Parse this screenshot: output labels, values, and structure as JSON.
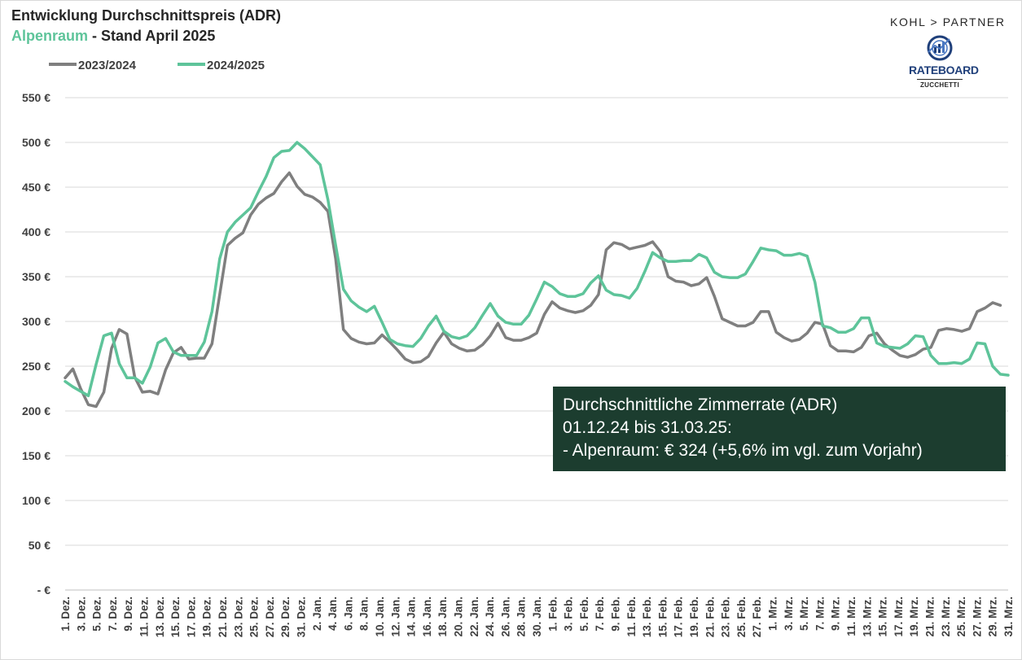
{
  "header": {
    "title": "Entwicklung Durchschnittspreis (ADR)",
    "subtitle_region": "Alpenraum",
    "subtitle_rest": " - Stand April 2025"
  },
  "logos": {
    "kohl_partner": "KOHL > PARTNER",
    "rateboard": "RATEBOARD",
    "rateboard_sub": "ZUCCHETTI"
  },
  "annotation": {
    "line1": "Durchschnittliche Zimmerrate (ADR)",
    "line2": "01.12.24 bis 31.03.25:",
    "line3": "- Alpenraum:  € 324 (+5,6% im vgl. zum Vorjahr)"
  },
  "colors": {
    "series_2023": "#7f7f7f",
    "series_2024": "#5ec49a",
    "annotation_bg": "#1c3d2f",
    "grid": "#d9d9d9"
  },
  "chart_data": {
    "type": "line",
    "title": "Entwicklung Durchschnittspreis (ADR)",
    "subtitle": "Alpenraum - Stand April 2025",
    "xlabel": "",
    "ylabel": "",
    "ylim": [
      0,
      550
    ],
    "y_ticks": [
      {
        "value": 0,
        "label": "- €"
      },
      {
        "value": 50,
        "label": "50 €"
      },
      {
        "value": 100,
        "label": "100 €"
      },
      {
        "value": 150,
        "label": "150 €"
      },
      {
        "value": 200,
        "label": "200 €"
      },
      {
        "value": 250,
        "label": "250 €"
      },
      {
        "value": 300,
        "label": "300 €"
      },
      {
        "value": 350,
        "label": "350 €"
      },
      {
        "value": 400,
        "label": "400 €"
      },
      {
        "value": 450,
        "label": "450 €"
      },
      {
        "value": 500,
        "label": "500 €"
      },
      {
        "value": 550,
        "label": "550 €"
      }
    ],
    "grid": true,
    "legend": "top-left",
    "x_tick_labels": [
      "1. Dez.",
      "3. Dez.",
      "5. Dez.",
      "7. Dez.",
      "9. Dez.",
      "11. Dez.",
      "13. Dez.",
      "15. Dez.",
      "17. Dez.",
      "19. Dez.",
      "21. Dez.",
      "23. Dez.",
      "25. Dez.",
      "27. Dez.",
      "29. Dez.",
      "31. Dez.",
      "2. Jan.",
      "4. Jan.",
      "6. Jan.",
      "8. Jan.",
      "10. Jan.",
      "12. Jan.",
      "14. Jan.",
      "16. Jan.",
      "18. Jan.",
      "20. Jan.",
      "22. Jan.",
      "24. Jan.",
      "26. Jan.",
      "28. Jan.",
      "30. Jan.",
      "1. Feb.",
      "3. Feb.",
      "5. Feb.",
      "7. Feb.",
      "9. Feb.",
      "11. Feb.",
      "13. Feb.",
      "15. Feb.",
      "17. Feb.",
      "19. Feb.",
      "21. Feb.",
      "23. Feb.",
      "25. Feb.",
      "27. Feb.",
      "1. Mrz.",
      "3. Mrz.",
      "5. Mrz.",
      "7. Mrz.",
      "9. Mrz.",
      "11. Mrz.",
      "13. Mrz.",
      "15. Mrz.",
      "17. Mrz.",
      "19. Mrz.",
      "21. Mrz.",
      "23. Mrz.",
      "25. Mrz.",
      "27. Mrz.",
      "29. Mrz.",
      "31. Mrz."
    ],
    "series": [
      {
        "name": "2023/2024",
        "values": [
          237,
          247,
          225,
          207,
          205,
          221,
          270,
          291,
          286,
          238,
          221,
          222,
          219,
          246,
          265,
          271,
          258,
          259,
          259,
          275,
          330,
          385,
          393,
          399,
          419,
          431,
          438,
          443,
          456,
          466,
          451,
          442,
          439,
          433,
          423,
          370,
          291,
          281,
          277,
          275,
          276,
          285,
          277,
          268,
          258,
          254,
          255,
          261,
          276,
          288,
          275,
          270,
          267,
          268,
          274,
          284,
          298,
          282,
          279,
          279,
          282,
          287,
          308,
          322,
          315,
          312,
          310,
          312,
          318,
          330,
          380,
          388,
          386,
          381,
          383,
          385,
          389,
          378,
          350,
          345,
          344,
          340,
          342,
          349,
          328,
          303,
          299,
          295,
          295,
          299,
          311,
          311,
          288,
          282,
          278,
          280,
          287,
          299,
          297,
          273,
          267,
          267,
          266,
          271,
          284,
          287,
          275,
          268,
          262,
          260,
          263,
          269,
          271,
          290,
          292,
          291,
          289,
          292,
          311,
          315,
          321,
          318
        ]
      },
      {
        "name": "2024/2025",
        "values": [
          233,
          227,
          222,
          217,
          252,
          284,
          287,
          253,
          237,
          237,
          231,
          249,
          276,
          281,
          266,
          262,
          262,
          262,
          277,
          311,
          370,
          400,
          411,
          419,
          427,
          445,
          462,
          483,
          490,
          491,
          500,
          493,
          484,
          475,
          436,
          385,
          336,
          323,
          316,
          311,
          317,
          299,
          280,
          275,
          273,
          272,
          281,
          295,
          306,
          289,
          283,
          281,
          284,
          293,
          307,
          320,
          306,
          299,
          297,
          297,
          307,
          325,
          344,
          339,
          331,
          328,
          328,
          331,
          343,
          351,
          335,
          330,
          329,
          326,
          337,
          356,
          377,
          371,
          367,
          367,
          368,
          368,
          375,
          371,
          355,
          350,
          349,
          349,
          353,
          367,
          382,
          380,
          379,
          374,
          374,
          376,
          373,
          344,
          295,
          293,
          288,
          288,
          292,
          304,
          304,
          276,
          272,
          271,
          270,
          275,
          284,
          283,
          262,
          253,
          253,
          254,
          253,
          258,
          276,
          275,
          250,
          241,
          240
        ]
      }
    ]
  }
}
